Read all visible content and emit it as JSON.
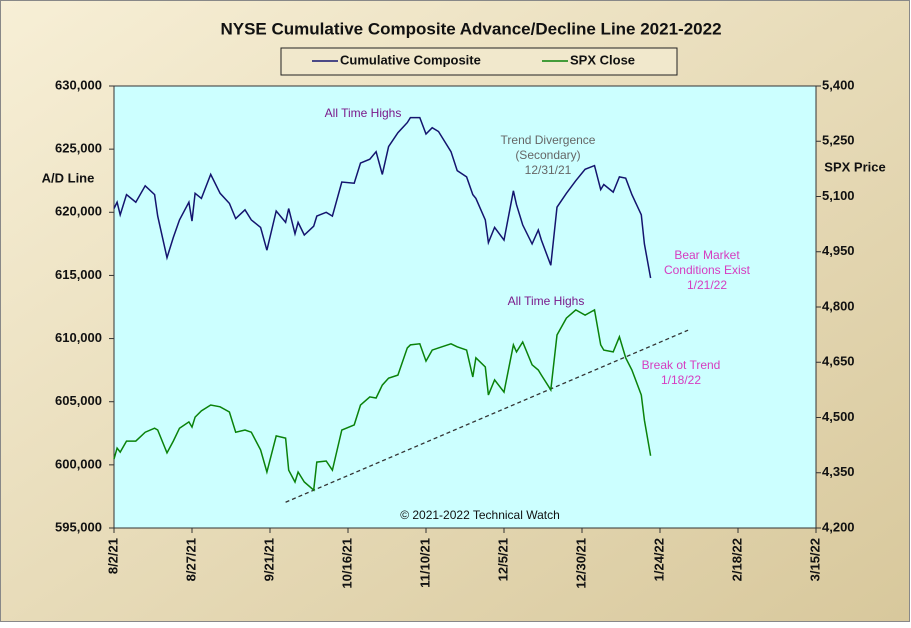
{
  "chart_data": {
    "type": "line",
    "title": "NYSE Cumulative  Composite Advance/Decline Line 2021-2022",
    "y_label": "A/D Line",
    "y2_label": "SPX Price",
    "footer": "© 2021-2022  Technical Watch",
    "legend": "top",
    "x": [
      "2021-08-02",
      "2021-08-03",
      "2021-08-04",
      "2021-08-06",
      "2021-08-09",
      "2021-08-12",
      "2021-08-15",
      "2021-08-16",
      "2021-08-19",
      "2021-08-21",
      "2021-08-23",
      "2021-08-26",
      "2021-08-27",
      "2021-08-28",
      "2021-08-30",
      "2021-09-02",
      "2021-09-05",
      "2021-09-08",
      "2021-09-10",
      "2021-09-13",
      "2021-09-15",
      "2021-09-18",
      "2021-09-20",
      "2021-09-23",
      "2021-09-26",
      "2021-09-27",
      "2021-09-29",
      "2021-09-30",
      "2021-10-02",
      "2021-10-05",
      "2021-10-06",
      "2021-10-09",
      "2021-10-11",
      "2021-10-14",
      "2021-10-18",
      "2021-10-20",
      "2021-10-23",
      "2021-10-25",
      "2021-10-27",
      "2021-10-29",
      "2021-11-01",
      "2021-11-04",
      "2021-11-05",
      "2021-11-08",
      "2021-11-10",
      "2021-11-12",
      "2021-11-14",
      "2021-11-18",
      "2021-11-20",
      "2021-11-23",
      "2021-11-25",
      "2021-11-26",
      "2021-11-29",
      "2021-11-30",
      "2021-12-02",
      "2021-12-05",
      "2021-12-08",
      "2021-12-09",
      "2021-12-11",
      "2021-12-14",
      "2021-12-16",
      "2021-12-17",
      "2021-12-20",
      "2021-12-22",
      "2021-12-25",
      "2021-12-28",
      "2021-12-31",
      "2022-01-03",
      "2022-01-05",
      "2022-01-06",
      "2022-01-09",
      "2022-01-11",
      "2022-01-13",
      "2022-01-15",
      "2022-01-18",
      "2022-01-19",
      "2022-01-21"
    ],
    "series": [
      {
        "name": "Cumulative Composite",
        "color": "#14146e",
        "axis": "y",
        "values": [
          620300,
          620800,
          619800,
          621400,
          620800,
          622100,
          621400,
          619700,
          616400,
          618000,
          619400,
          620800,
          619300,
          621500,
          621100,
          623000,
          621500,
          620700,
          619500,
          620200,
          619400,
          618800,
          617000,
          620100,
          619200,
          620300,
          618300,
          619200,
          618200,
          618900,
          619700,
          620000,
          619700,
          622400,
          622300,
          623900,
          624200,
          624800,
          623000,
          625200,
          626300,
          627100,
          627500,
          627500,
          626200,
          626700,
          626400,
          624800,
          623300,
          622800,
          621400,
          621100,
          619400,
          617600,
          618800,
          617800,
          621700,
          620600,
          619000,
          617500,
          618600,
          617800,
          615800,
          620400,
          621500,
          622500,
          623400,
          623700,
          621800,
          622200,
          621600,
          622800,
          622700,
          621400,
          619800,
          617500,
          614800
        ]
      },
      {
        "name": "SPX Close",
        "color": "#0a820a",
        "axis": "y2",
        "values": [
          4387,
          4417,
          4406,
          4436,
          4436,
          4460,
          4471,
          4466,
          4404,
          4436,
          4471,
          4488,
          4474,
          4501,
          4518,
          4534,
          4529,
          4515,
          4460,
          4466,
          4460,
          4412,
          4352,
          4450,
          4444,
          4357,
          4325,
          4352,
          4325,
          4303,
          4379,
          4382,
          4357,
          4466,
          4480,
          4534,
          4556,
          4553,
          4588,
          4607,
          4615,
          4689,
          4697,
          4700,
          4653,
          4683,
          4689,
          4700,
          4692,
          4683,
          4610,
          4662,
          4637,
          4561,
          4602,
          4569,
          4697,
          4678,
          4705,
          4643,
          4629,
          4615,
          4575,
          4724,
          4770,
          4792,
          4778,
          4792,
          4697,
          4683,
          4678,
          4719,
          4662,
          4629,
          4561,
          4493,
          4396
        ]
      }
    ],
    "trendline": {
      "x": [
        "2021-09-26",
        "2022-02-02"
      ],
      "values": [
        4270,
        4737
      ],
      "axis": "y2",
      "color": "#333333"
    },
    "annotations": [
      {
        "lines": [
          "All Time Highs"
        ],
        "color": "#7a1a8a"
      },
      {
        "lines": [
          "Trend  Divergence",
          "(Secondary)",
          "12/31/21"
        ],
        "color": "#666666"
      },
      {
        "lines": [
          "Bear Market",
          "Conditions  Exist",
          "1/21/22"
        ],
        "color": "#d63cc0"
      },
      {
        "lines": [
          "All Time Highs"
        ],
        "color": "#7a1a8a"
      },
      {
        "lines": [
          "Break ot Trend",
          "1/18/22"
        ],
        "color": "#d63cc0"
      }
    ],
    "xlim": [
      "2021-08-02",
      "2022-03-15"
    ],
    "xticks": [
      {
        "value": "2021-08-02",
        "label": "8/2/21"
      },
      {
        "value": "2021-08-27",
        "label": "8/27/21"
      },
      {
        "value": "2021-09-21",
        "label": "9/21/21"
      },
      {
        "value": "2021-10-16",
        "label": "10/16/21"
      },
      {
        "value": "2021-11-10",
        "label": "11/10/21"
      },
      {
        "value": "2021-12-05",
        "label": "12/5/21"
      },
      {
        "value": "2021-12-30",
        "label": "12/30/21"
      },
      {
        "value": "2022-01-24",
        "label": "1/24/22"
      },
      {
        "value": "2022-02-18",
        "label": "2/18/22"
      },
      {
        "value": "2022-03-15",
        "label": "3/15/22"
      }
    ],
    "ylim": [
      595000,
      630000
    ],
    "yticks": [
      {
        "value": 595000,
        "label": "595,000"
      },
      {
        "value": 600000,
        "label": "600,000"
      },
      {
        "value": 605000,
        "label": "605,000"
      },
      {
        "value": 610000,
        "label": "610,000"
      },
      {
        "value": 615000,
        "label": "615,000"
      },
      {
        "value": 620000,
        "label": "620,000"
      },
      {
        "value": 625000,
        "label": "625,000"
      },
      {
        "value": 630000,
        "label": "630,000"
      }
    ],
    "y2lim": [
      4200,
      5400
    ],
    "y2ticks": [
      {
        "value": 4200,
        "label": "4,200"
      },
      {
        "value": 4350,
        "label": "4,350"
      },
      {
        "value": 4500,
        "label": "4,500"
      },
      {
        "value": 4650,
        "label": "4,650"
      },
      {
        "value": 4800,
        "label": "4,800"
      },
      {
        "value": 4950,
        "label": "4,950"
      },
      {
        "value": 5100,
        "label": "5,100"
      },
      {
        "value": 5250,
        "label": "5,250"
      },
      {
        "value": 5400,
        "label": "5,400"
      }
    ]
  }
}
